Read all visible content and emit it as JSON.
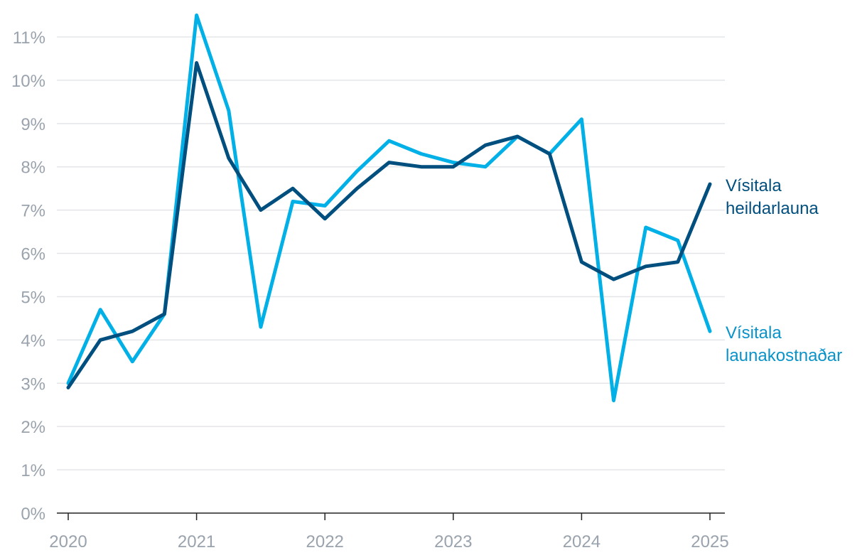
{
  "chart_data": {
    "type": "line",
    "x": [
      2020.0,
      2020.25,
      2020.5,
      2020.75,
      2021.0,
      2021.25,
      2021.5,
      2021.75,
      2022.0,
      2022.25,
      2022.5,
      2022.75,
      2023.0,
      2023.25,
      2023.5,
      2023.75,
      2024.0,
      2024.25,
      2024.5,
      2024.75,
      2025.0
    ],
    "x_ticks": [
      2020,
      2021,
      2022,
      2023,
      2024,
      2025
    ],
    "x_tick_labels": [
      "2020",
      "2021",
      "2022",
      "2023",
      "2024",
      "2025"
    ],
    "xlim": [
      2020,
      2025
    ],
    "ylim": [
      0,
      11
    ],
    "y_ticks": [
      0,
      1,
      2,
      3,
      4,
      5,
      6,
      7,
      8,
      9,
      10,
      11
    ],
    "y_tick_labels": [
      "0%",
      "1%",
      "2%",
      "3%",
      "4%",
      "5%",
      "6%",
      "7%",
      "8%",
      "9%",
      "10%",
      "11%"
    ],
    "grid": true,
    "series": [
      {
        "name": "Vísitala launakostnaðar",
        "label_lines": [
          "Vísitala",
          "launakostnaðar"
        ],
        "color": "#00b0e6",
        "label_color": "#0a93c9",
        "values": [
          3.0,
          4.7,
          3.5,
          4.6,
          11.5,
          9.3,
          4.3,
          7.2,
          7.1,
          7.9,
          8.6,
          8.3,
          8.1,
          8.0,
          8.7,
          8.3,
          9.1,
          2.6,
          6.6,
          6.3,
          4.2
        ]
      },
      {
        "name": "Vísitala heildarlauna",
        "label_lines": [
          "Vísitala",
          "heildarlauna"
        ],
        "color": "#004f7e",
        "label_color": "#004f7e",
        "values": [
          2.9,
          4.0,
          4.2,
          4.6,
          10.4,
          8.2,
          7.0,
          7.5,
          6.8,
          7.5,
          8.1,
          8.0,
          8.0,
          8.5,
          8.7,
          8.3,
          5.8,
          5.4,
          5.7,
          5.8,
          7.6
        ]
      }
    ]
  }
}
